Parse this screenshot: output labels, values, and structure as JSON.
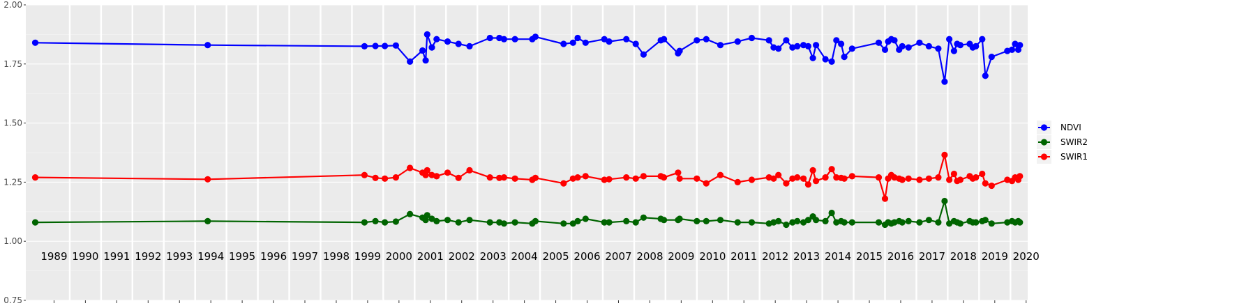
{
  "chart_data": {
    "type": "line",
    "title": "",
    "xlabel": "",
    "ylabel": "",
    "xlim": [
      1988.6,
      2020.55
    ],
    "ylim": [
      0.75,
      2.0
    ],
    "yticks": [
      "0.75",
      "1.00",
      "1.25",
      "1.50",
      "1.75",
      "2.00"
    ],
    "year_labels": [
      "1989",
      "1990",
      "1991",
      "1992",
      "1993",
      "1994",
      "1995",
      "1996",
      "1997",
      "1998",
      "1999",
      "2000",
      "2001",
      "2002",
      "2003",
      "2004",
      "2005",
      "2006",
      "2007",
      "2008",
      "2009",
      "2010",
      "2011",
      "2012",
      "2013",
      "2014",
      "2015",
      "2016",
      "2017",
      "2018",
      "2019",
      "2020"
    ],
    "grid": true,
    "legend_position": "right",
    "x": [
      1988.9,
      1994.4,
      1999.4,
      1999.75,
      2000.05,
      2000.4,
      2000.85,
      2001.25,
      2001.35,
      2001.4,
      2001.55,
      2001.7,
      2002.05,
      2002.4,
      2002.75,
      2003.4,
      2003.7,
      2003.85,
      2004.2,
      2004.75,
      2004.85,
      2005.75,
      2006.05,
      2006.2,
      2006.45,
      2007.05,
      2007.2,
      2007.75,
      2008.05,
      2008.3,
      2008.85,
      2008.95,
      2009.4,
      2009.45,
      2010.0,
      2010.3,
      2010.75,
      2011.3,
      2011.75,
      2012.3,
      2012.45,
      2012.6,
      2012.85,
      2013.05,
      2013.2,
      2013.4,
      2013.55,
      2013.7,
      2013.8,
      2014.1,
      2014.3,
      2014.45,
      2014.6,
      2014.7,
      2014.95,
      2015.8,
      2016.0,
      2016.1,
      2016.2,
      2016.3,
      2016.45,
      2016.55,
      2016.75,
      2017.1,
      2017.4,
      2017.7,
      2017.9,
      2018.05,
      2018.2,
      2018.3,
      2018.4,
      2018.7,
      2018.8,
      2018.9,
      2019.1,
      2019.2,
      2019.4,
      2019.9,
      2020.05,
      2020.15,
      2020.25,
      2020.3
    ],
    "series": [
      {
        "name": "NDVI",
        "color": "#0000ff",
        "values": [
          1.84,
          1.83,
          1.825,
          1.826,
          1.826,
          1.828,
          1.76,
          1.807,
          1.765,
          1.875,
          1.82,
          1.855,
          1.845,
          1.835,
          1.825,
          1.86,
          1.86,
          1.855,
          1.855,
          1.855,
          1.865,
          1.835,
          1.84,
          1.86,
          1.84,
          1.855,
          1.845,
          1.855,
          1.835,
          1.79,
          1.85,
          1.855,
          1.795,
          1.805,
          1.85,
          1.855,
          1.83,
          1.845,
          1.86,
          1.85,
          1.82,
          1.815,
          1.85,
          1.82,
          1.825,
          1.83,
          1.825,
          1.775,
          1.83,
          1.77,
          1.76,
          1.85,
          1.835,
          1.78,
          1.815,
          1.84,
          1.81,
          1.845,
          1.855,
          1.85,
          1.81,
          1.825,
          1.82,
          1.84,
          1.825,
          1.815,
          1.675,
          1.855,
          1.805,
          1.835,
          1.83,
          1.835,
          1.82,
          1.825,
          1.855,
          1.7,
          1.78,
          1.805,
          1.81,
          1.835,
          1.81,
          1.83
        ]
      },
      {
        "name": "SWIR2",
        "color": "#006400",
        "values": [
          1.08,
          1.085,
          1.08,
          1.085,
          1.08,
          1.083,
          1.115,
          1.1,
          1.09,
          1.11,
          1.095,
          1.085,
          1.09,
          1.08,
          1.09,
          1.08,
          1.08,
          1.075,
          1.08,
          1.075,
          1.085,
          1.075,
          1.075,
          1.085,
          1.095,
          1.08,
          1.08,
          1.085,
          1.08,
          1.1,
          1.095,
          1.09,
          1.09,
          1.095,
          1.085,
          1.085,
          1.09,
          1.08,
          1.08,
          1.075,
          1.08,
          1.085,
          1.07,
          1.08,
          1.085,
          1.08,
          1.09,
          1.105,
          1.09,
          1.085,
          1.12,
          1.08,
          1.085,
          1.08,
          1.08,
          1.08,
          1.07,
          1.08,
          1.075,
          1.08,
          1.085,
          1.08,
          1.085,
          1.08,
          1.09,
          1.08,
          1.17,
          1.075,
          1.085,
          1.08,
          1.075,
          1.085,
          1.08,
          1.08,
          1.085,
          1.09,
          1.075,
          1.08,
          1.085,
          1.08,
          1.085,
          1.08
        ]
      },
      {
        "name": "SWIR1",
        "color": "#ff0000",
        "values": [
          1.27,
          1.262,
          1.28,
          1.268,
          1.265,
          1.27,
          1.31,
          1.29,
          1.28,
          1.3,
          1.28,
          1.275,
          1.29,
          1.268,
          1.3,
          1.27,
          1.268,
          1.27,
          1.265,
          1.26,
          1.268,
          1.245,
          1.265,
          1.27,
          1.275,
          1.26,
          1.262,
          1.27,
          1.265,
          1.275,
          1.275,
          1.27,
          1.29,
          1.265,
          1.265,
          1.245,
          1.28,
          1.25,
          1.26,
          1.27,
          1.265,
          1.28,
          1.245,
          1.265,
          1.27,
          1.265,
          1.24,
          1.3,
          1.255,
          1.27,
          1.305,
          1.27,
          1.268,
          1.265,
          1.275,
          1.27,
          1.18,
          1.265,
          1.28,
          1.27,
          1.265,
          1.26,
          1.265,
          1.26,
          1.265,
          1.27,
          1.365,
          1.26,
          1.285,
          1.255,
          1.26,
          1.275,
          1.265,
          1.27,
          1.285,
          1.245,
          1.235,
          1.26,
          1.255,
          1.27,
          1.26,
          1.275
        ]
      }
    ]
  }
}
